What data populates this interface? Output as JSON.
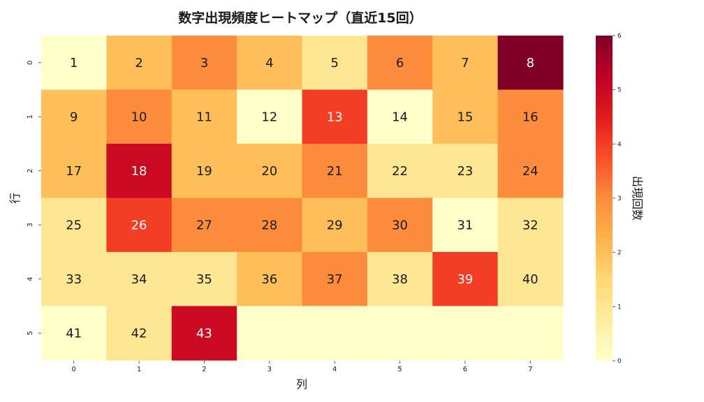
{
  "chart_data": {
    "type": "heatmap",
    "title": "数字出現頻度ヒートマップ（直近15回）",
    "xlabel": "列",
    "ylabel": "行",
    "colorbar_label": "出現回数",
    "x_ticks": [
      "0",
      "1",
      "2",
      "3",
      "4",
      "5",
      "6",
      "7"
    ],
    "y_ticks": [
      "0",
      "1",
      "2",
      "3",
      "4",
      "5"
    ],
    "colorbar_ticks": [
      "0",
      "1",
      "2",
      "3",
      "4",
      "5",
      "6"
    ],
    "vmin": 0,
    "vmax": 6,
    "colormap": "YlOrRd",
    "rows": [
      {
        "labels": [
          "1",
          "2",
          "3",
          "4",
          "5",
          "6",
          "7",
          "8"
        ],
        "values": [
          0,
          2,
          3,
          2,
          1,
          3,
          2,
          6
        ]
      },
      {
        "labels": [
          "9",
          "10",
          "11",
          "12",
          "13",
          "14",
          "15",
          "16"
        ],
        "values": [
          2,
          3,
          2,
          0,
          4,
          0,
          2,
          3
        ]
      },
      {
        "labels": [
          "17",
          "18",
          "19",
          "20",
          "21",
          "22",
          "23",
          "24"
        ],
        "values": [
          2,
          5,
          2,
          2,
          3,
          1,
          1,
          3
        ]
      },
      {
        "labels": [
          "25",
          "26",
          "27",
          "28",
          "29",
          "30",
          "31",
          "32"
        ],
        "values": [
          1,
          4,
          3,
          3,
          2,
          3,
          0,
          1
        ]
      },
      {
        "labels": [
          "33",
          "34",
          "35",
          "36",
          "37",
          "38",
          "39",
          "40"
        ],
        "values": [
          1,
          1,
          1,
          2,
          3,
          1,
          4,
          1
        ]
      },
      {
        "labels": [
          "41",
          "42",
          "43",
          "",
          "",
          "",
          "",
          ""
        ],
        "values": [
          0,
          1,
          5,
          0,
          0,
          0,
          0,
          0
        ]
      }
    ]
  }
}
